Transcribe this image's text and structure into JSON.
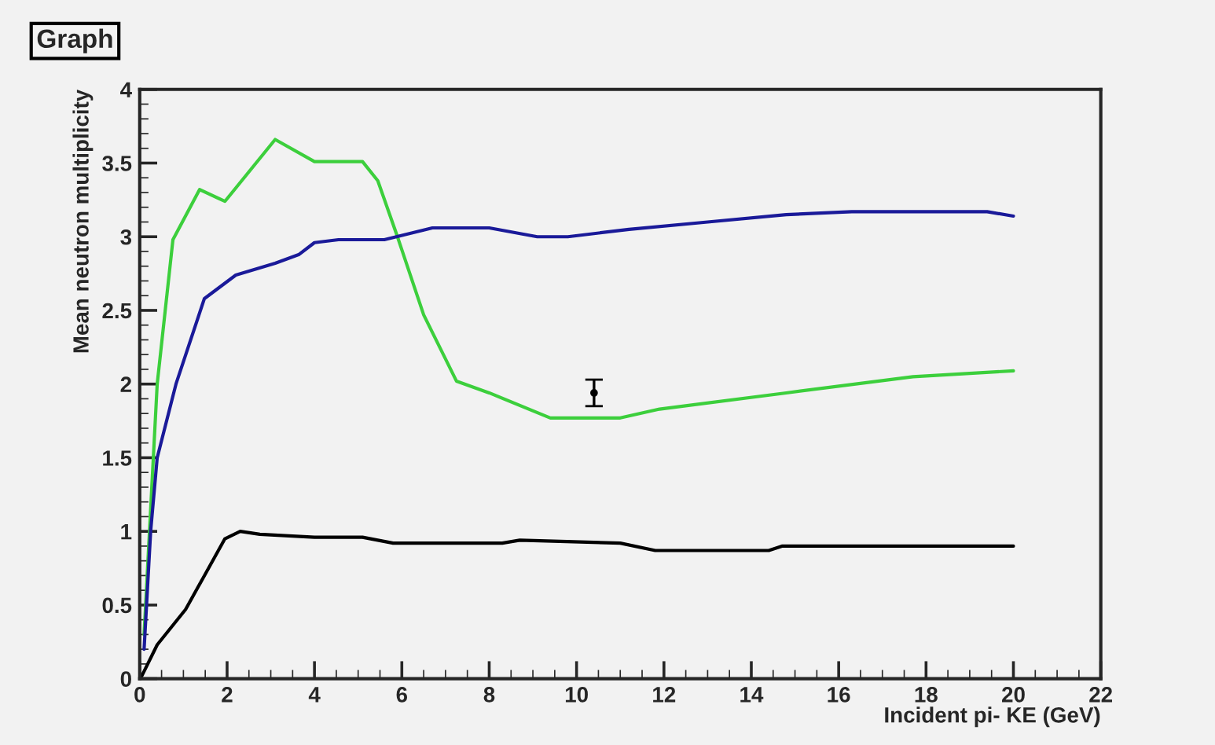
{
  "chart_data": {
    "type": "line",
    "title": "Graph",
    "xlabel": "Incident pi- KE (GeV)",
    "ylabel": "Mean neutron multiplicity",
    "xlim": [
      0,
      22
    ],
    "xticks": [
      0,
      2,
      4,
      6,
      8,
      10,
      12,
      14,
      16,
      18,
      20,
      22
    ],
    "ylim": [
      0,
      4
    ],
    "yticks": [
      0,
      0.5,
      1,
      1.5,
      2,
      2.5,
      3,
      3.5,
      4
    ],
    "grid": false,
    "legend": false,
    "series": [
      {
        "color": "#3ccf3c",
        "x": [
          0.1,
          0.4,
          0.76,
          1.37,
          1.95,
          3.1,
          4.0,
          5.1,
          5.45,
          5.9,
          6.5,
          7.25,
          8.0,
          9.4,
          11.0,
          11.9,
          14.8,
          17.7,
          20.0
        ],
        "values": [
          0.3,
          2.0,
          2.98,
          3.32,
          3.24,
          3.66,
          3.51,
          3.51,
          3.38,
          3.0,
          2.47,
          2.02,
          1.94,
          1.77,
          1.77,
          1.83,
          1.94,
          2.05,
          2.09
        ]
      },
      {
        "color": "#1a1a99",
        "x": [
          0.1,
          0.25,
          0.4,
          0.83,
          1.48,
          2.2,
          3.1,
          3.65,
          4.0,
          4.55,
          5.6,
          6.7,
          8.0,
          9.1,
          9.8,
          11.2,
          13.0,
          14.8,
          16.3,
          19.4,
          20.0
        ],
        "values": [
          0.2,
          1.0,
          1.5,
          2.0,
          2.58,
          2.74,
          2.82,
          2.88,
          2.96,
          2.98,
          2.98,
          3.06,
          3.06,
          3.0,
          3.0,
          3.05,
          3.1,
          3.15,
          3.17,
          3.17,
          3.14
        ]
      },
      {
        "color": "#000000",
        "x": [
          0.05,
          0.4,
          1.05,
          1.95,
          2.3,
          2.75,
          4.0,
          5.1,
          5.8,
          8.3,
          8.7,
          11.0,
          11.8,
          14.4,
          14.7,
          20.0
        ],
        "values": [
          0.02,
          0.23,
          0.47,
          0.95,
          1.0,
          0.98,
          0.96,
          0.96,
          0.92,
          0.92,
          0.94,
          0.92,
          0.87,
          0.87,
          0.9,
          0.9
        ]
      },
      {
        "type": "scatter",
        "color": "#000000",
        "marker": "circle",
        "x": [
          10.4
        ],
        "values": [
          1.94
        ],
        "errors": [
          [
            1.85,
            2.03
          ]
        ]
      }
    ]
  }
}
